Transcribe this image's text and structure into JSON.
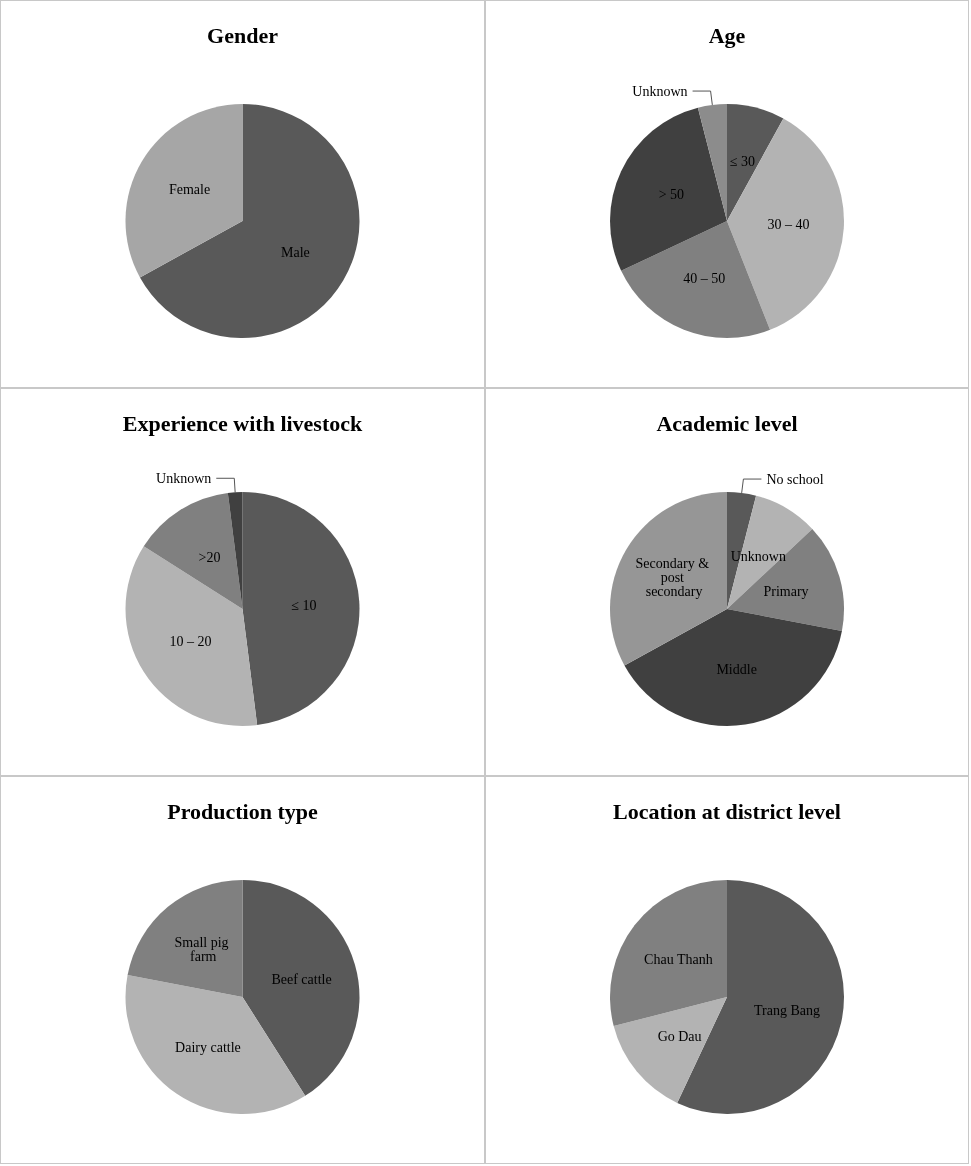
{
  "chart_data": [
    {
      "type": "pie",
      "title": "Gender",
      "categories": [
        "Male",
        "Female"
      ],
      "values": [
        67,
        33
      ],
      "colors": [
        "#595959",
        "#a6a6a6"
      ]
    },
    {
      "type": "pie",
      "title": "Age",
      "categories": [
        "≤ 30",
        "30 – 40",
        "40 – 50",
        "> 50",
        "Unknown"
      ],
      "values": [
        8,
        36,
        24,
        28,
        4
      ],
      "colors": [
        "#595959",
        "#b3b3b3",
        "#808080",
        "#404040",
        "#8c8c8c"
      ]
    },
    {
      "type": "pie",
      "title": "Experience with livestock",
      "categories": [
        "≤ 10",
        "10 – 20",
        ">20",
        "Unknown"
      ],
      "values": [
        48,
        36,
        14,
        2
      ],
      "colors": [
        "#595959",
        "#b3b3b3",
        "#808080",
        "#404040"
      ]
    },
    {
      "type": "pie",
      "title": "Academic level",
      "categories": [
        "No school",
        "Unknown",
        "Primary",
        "Middle",
        "Secondary & post secondary"
      ],
      "values": [
        4,
        9,
        15,
        39,
        33
      ],
      "colors": [
        "#595959",
        "#b3b3b3",
        "#808080",
        "#404040",
        "#969696"
      ]
    },
    {
      "type": "pie",
      "title": "Production type",
      "categories": [
        "Beef cattle",
        "Dairy cattle",
        "Small pig farm"
      ],
      "values": [
        41,
        37,
        22
      ],
      "colors": [
        "#595959",
        "#b3b3b3",
        "#808080"
      ]
    },
    {
      "type": "pie",
      "title": "Location at district level",
      "categories": [
        "Trang Bang",
        "Go Dau",
        "Chau Thanh"
      ],
      "values": [
        57,
        14,
        29
      ],
      "colors": [
        "#595959",
        "#b3b3b3",
        "#808080"
      ]
    }
  ]
}
